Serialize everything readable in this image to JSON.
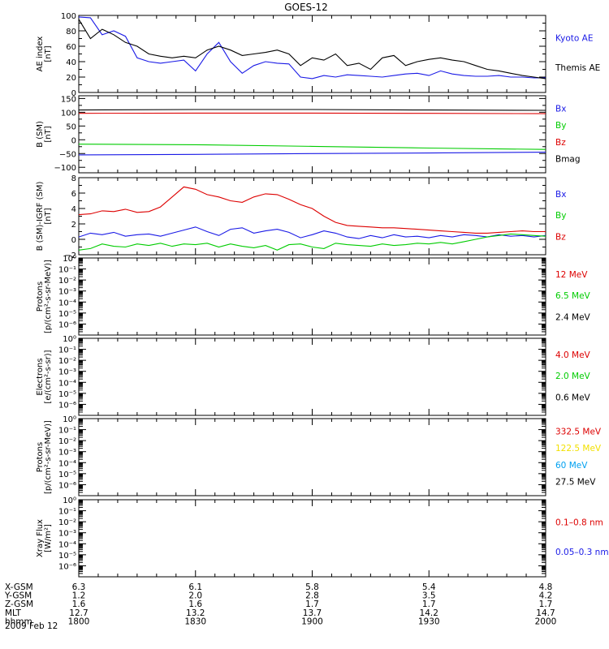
{
  "title": "GOES-12",
  "date_label": "2009 Feb 12",
  "colors": {
    "black": "#000000",
    "blue": "#1a1ae6",
    "green": "#00cc00",
    "red": "#dd0000",
    "yellow": "#f2e000",
    "cyan": "#00a0f0"
  },
  "chart_data": [
    {
      "type": "line",
      "panel": "ae",
      "ylabel": [
        "AE index",
        "[nT]"
      ],
      "ylim": [
        0,
        100
      ],
      "yticks": [
        "0",
        "20",
        "40",
        "60",
        "80",
        "100"
      ],
      "x": [
        1800,
        1803,
        1806,
        1809,
        1812,
        1815,
        1818,
        1821,
        1824,
        1827,
        1830,
        1833,
        1836,
        1839,
        1842,
        1845,
        1848,
        1851,
        1854,
        1857,
        1900,
        1903,
        1906,
        1909,
        1912,
        1915,
        1918,
        1921,
        1924,
        1927,
        1930,
        1933,
        1936,
        1939,
        1942,
        1945,
        1948,
        1951,
        1954,
        1957,
        2000
      ],
      "series": [
        {
          "name": "Kyoto AE",
          "color": "blue",
          "values": [
            98,
            97,
            75,
            80,
            73,
            45,
            40,
            38,
            40,
            42,
            28,
            50,
            65,
            40,
            25,
            35,
            40,
            38,
            37,
            20,
            18,
            22,
            20,
            23,
            22,
            21,
            20,
            22,
            24,
            25,
            22,
            28,
            24,
            22,
            21,
            21,
            22,
            20,
            20,
            19,
            19
          ]
        },
        {
          "name": "Themis AE",
          "color": "black",
          "values": [
            95,
            70,
            82,
            75,
            65,
            60,
            50,
            47,
            45,
            47,
            45,
            55,
            60,
            55,
            48,
            50,
            52,
            55,
            50,
            35,
            45,
            42,
            50,
            35,
            38,
            30,
            45,
            48,
            35,
            40,
            43,
            45,
            42,
            40,
            35,
            30,
            28,
            25,
            22,
            20,
            18
          ]
        }
      ],
      "legend": [
        {
          "label": "Kyoto AE",
          "color": "blue"
        },
        {
          "label": "Themis AE",
          "color": "black"
        }
      ]
    },
    {
      "type": "line",
      "panel": "b_sm",
      "ylabel": [
        "B (SM)",
        "[nT]"
      ],
      "ylim": [
        -120,
        160
      ],
      "yticks": [
        "−100",
        "−50",
        "0",
        "50",
        "100",
        "150"
      ],
      "x": [
        1800,
        1830,
        1900,
        1930,
        2000
      ],
      "series": [
        {
          "name": "Bmag",
          "color": "black",
          "values": [
            108,
            110,
            110,
            108,
            107
          ]
        },
        {
          "name": "Bz",
          "color": "red",
          "values": [
            96,
            97,
            97,
            96,
            95
          ]
        },
        {
          "name": "By",
          "color": "green",
          "values": [
            -16,
            -18,
            -24,
            -30,
            -35
          ]
        },
        {
          "name": "Bx",
          "color": "blue",
          "values": [
            -55,
            -53,
            -50,
            -48,
            -45
          ]
        }
      ],
      "legend": [
        {
          "label": "Bx",
          "color": "blue"
        },
        {
          "label": "By",
          "color": "green"
        },
        {
          "label": "Bz",
          "color": "red"
        },
        {
          "label": "Bmag",
          "color": "black"
        }
      ]
    },
    {
      "type": "line",
      "panel": "b_igrf",
      "ylabel": [
        "B (SM)-IGRF (SM)",
        "[nT]"
      ],
      "ylim": [
        -2,
        8
      ],
      "yticks": [
        "−2",
        "0",
        "2",
        "4",
        "6",
        "8"
      ],
      "x": [
        1800,
        1803,
        1806,
        1809,
        1812,
        1815,
        1818,
        1821,
        1824,
        1827,
        1830,
        1833,
        1836,
        1839,
        1842,
        1845,
        1848,
        1851,
        1854,
        1857,
        1900,
        1903,
        1906,
        1909,
        1912,
        1915,
        1918,
        1921,
        1924,
        1927,
        1930,
        1933,
        1936,
        1939,
        1942,
        1945,
        1948,
        1951,
        1954,
        1957,
        2000
      ],
      "series": [
        {
          "name": "Bz",
          "color": "red",
          "values": [
            3.2,
            3.3,
            3.7,
            3.6,
            3.9,
            3.5,
            3.6,
            4.2,
            5.5,
            6.8,
            6.5,
            5.8,
            5.5,
            5.0,
            4.8,
            5.5,
            5.9,
            5.8,
            5.2,
            4.5,
            4.0,
            3.0,
            2.2,
            1.8,
            1.7,
            1.6,
            1.5,
            1.5,
            1.4,
            1.3,
            1.2,
            1.1,
            1.0,
            0.9,
            0.8,
            0.8,
            0.9,
            1.0,
            1.1,
            1.0,
            1.0
          ]
        },
        {
          "name": "Bx",
          "color": "blue",
          "values": [
            0.3,
            0.8,
            0.6,
            0.9,
            0.4,
            0.6,
            0.7,
            0.4,
            0.8,
            1.2,
            1.6,
            1.0,
            0.5,
            1.3,
            1.5,
            0.8,
            1.1,
            1.3,
            0.9,
            0.2,
            0.6,
            1.1,
            0.8,
            0.3,
            0.1,
            0.5,
            0.2,
            0.6,
            0.3,
            0.4,
            0.2,
            0.5,
            0.3,
            0.6,
            0.5,
            0.3,
            0.6,
            0.4,
            0.5,
            0.3,
            0.5
          ]
        },
        {
          "name": "By",
          "color": "green",
          "values": [
            -1.4,
            -1.2,
            -0.6,
            -0.9,
            -1.0,
            -0.6,
            -0.8,
            -0.5,
            -0.9,
            -0.6,
            -0.7,
            -0.5,
            -1.0,
            -0.6,
            -0.9,
            -1.1,
            -0.8,
            -1.4,
            -0.7,
            -0.6,
            -1.0,
            -1.2,
            -0.5,
            -0.7,
            -0.8,
            -0.9,
            -0.6,
            -0.8,
            -0.7,
            -0.5,
            -0.6,
            -0.4,
            -0.6,
            -0.3,
            0.0,
            0.3,
            0.5,
            0.7,
            0.6,
            0.5,
            0.4
          ]
        }
      ],
      "legend": [
        {
          "label": "Bx",
          "color": "blue"
        },
        {
          "label": "By",
          "color": "green"
        },
        {
          "label": "Bz",
          "color": "red"
        }
      ]
    },
    {
      "type": "line",
      "panel": "protons_low",
      "ylabel": [
        "Protons",
        "[p/(cm²-s-sr-MeV)]"
      ],
      "yscale": "log",
      "ylim": [
        1e-07,
        1
      ],
      "yticks": [
        "10⁰",
        "10⁻¹",
        "10⁻²",
        "10⁻³",
        "10⁻⁴",
        "10⁻⁵",
        "10⁻⁶"
      ],
      "series": [],
      "legend": [
        {
          "label": "12 MeV",
          "color": "red"
        },
        {
          "label": "6.5 MeV",
          "color": "green"
        },
        {
          "label": "2.4 MeV",
          "color": "black"
        }
      ]
    },
    {
      "type": "line",
      "panel": "electrons",
      "ylabel": [
        "Electrons",
        "[e/(cm²-s-sr)]"
      ],
      "yscale": "log",
      "ylim": [
        1e-07,
        1
      ],
      "yticks": [
        "10⁰",
        "10⁻¹",
        "10⁻²",
        "10⁻³",
        "10⁻⁴",
        "10⁻⁵",
        "10⁻⁶"
      ],
      "series": [],
      "legend": [
        {
          "label": "4.0 MeV",
          "color": "red"
        },
        {
          "label": "2.0 MeV",
          "color": "green"
        },
        {
          "label": "0.6 MeV",
          "color": "black"
        }
      ]
    },
    {
      "type": "line",
      "panel": "protons_high",
      "ylabel": [
        "Protons",
        "[p/(cm²-s-sr-MeV)]"
      ],
      "yscale": "log",
      "ylim": [
        1e-07,
        1
      ],
      "yticks": [
        "10⁰",
        "10⁻¹",
        "10⁻²",
        "10⁻³",
        "10⁻⁴",
        "10⁻⁵",
        "10⁻⁶"
      ],
      "series": [],
      "legend": [
        {
          "label": "332.5 MeV",
          "color": "red"
        },
        {
          "label": "122.5 MeV",
          "color": "yellow"
        },
        {
          "label": "60 MeV",
          "color": "cyan"
        },
        {
          "label": "27.5 MeV",
          "color": "black"
        }
      ]
    },
    {
      "type": "line",
      "panel": "xray",
      "ylabel": [
        "Xray  Flux",
        "[W/m²]"
      ],
      "yscale": "log",
      "ylim": [
        1e-07,
        1
      ],
      "yticks": [
        "10⁰",
        "10⁻¹",
        "10⁻²",
        "10⁻³",
        "10⁻⁴",
        "10⁻⁵",
        "10⁻⁶"
      ],
      "series": [],
      "legend": [
        {
          "label": "0.1–0.8 nm",
          "color": "red"
        },
        {
          "label": "0.05–0.3 nm",
          "color": "blue"
        }
      ]
    }
  ],
  "x_axis": {
    "xlim": [
      1800,
      2000
    ],
    "positions": [
      1800,
      1830,
      1900,
      1930,
      2000
    ],
    "rows": [
      {
        "label": "X-GSM",
        "values": [
          "6.3",
          "6.1",
          "5.8",
          "5.4",
          "4.8"
        ]
      },
      {
        "label": "Y-GSM",
        "values": [
          "1.2",
          "2.0",
          "2.8",
          "3.5",
          "4.2"
        ]
      },
      {
        "label": "Z-GSM",
        "values": [
          "1.6",
          "1.6",
          "1.7",
          "1.7",
          "1.7"
        ]
      },
      {
        "label": "MLT",
        "values": [
          "12.7",
          "13.2",
          "13.7",
          "14.2",
          "14.7"
        ]
      },
      {
        "label": "hhmm",
        "values": [
          "1800",
          "1830",
          "1900",
          "1930",
          "2000"
        ]
      }
    ]
  }
}
